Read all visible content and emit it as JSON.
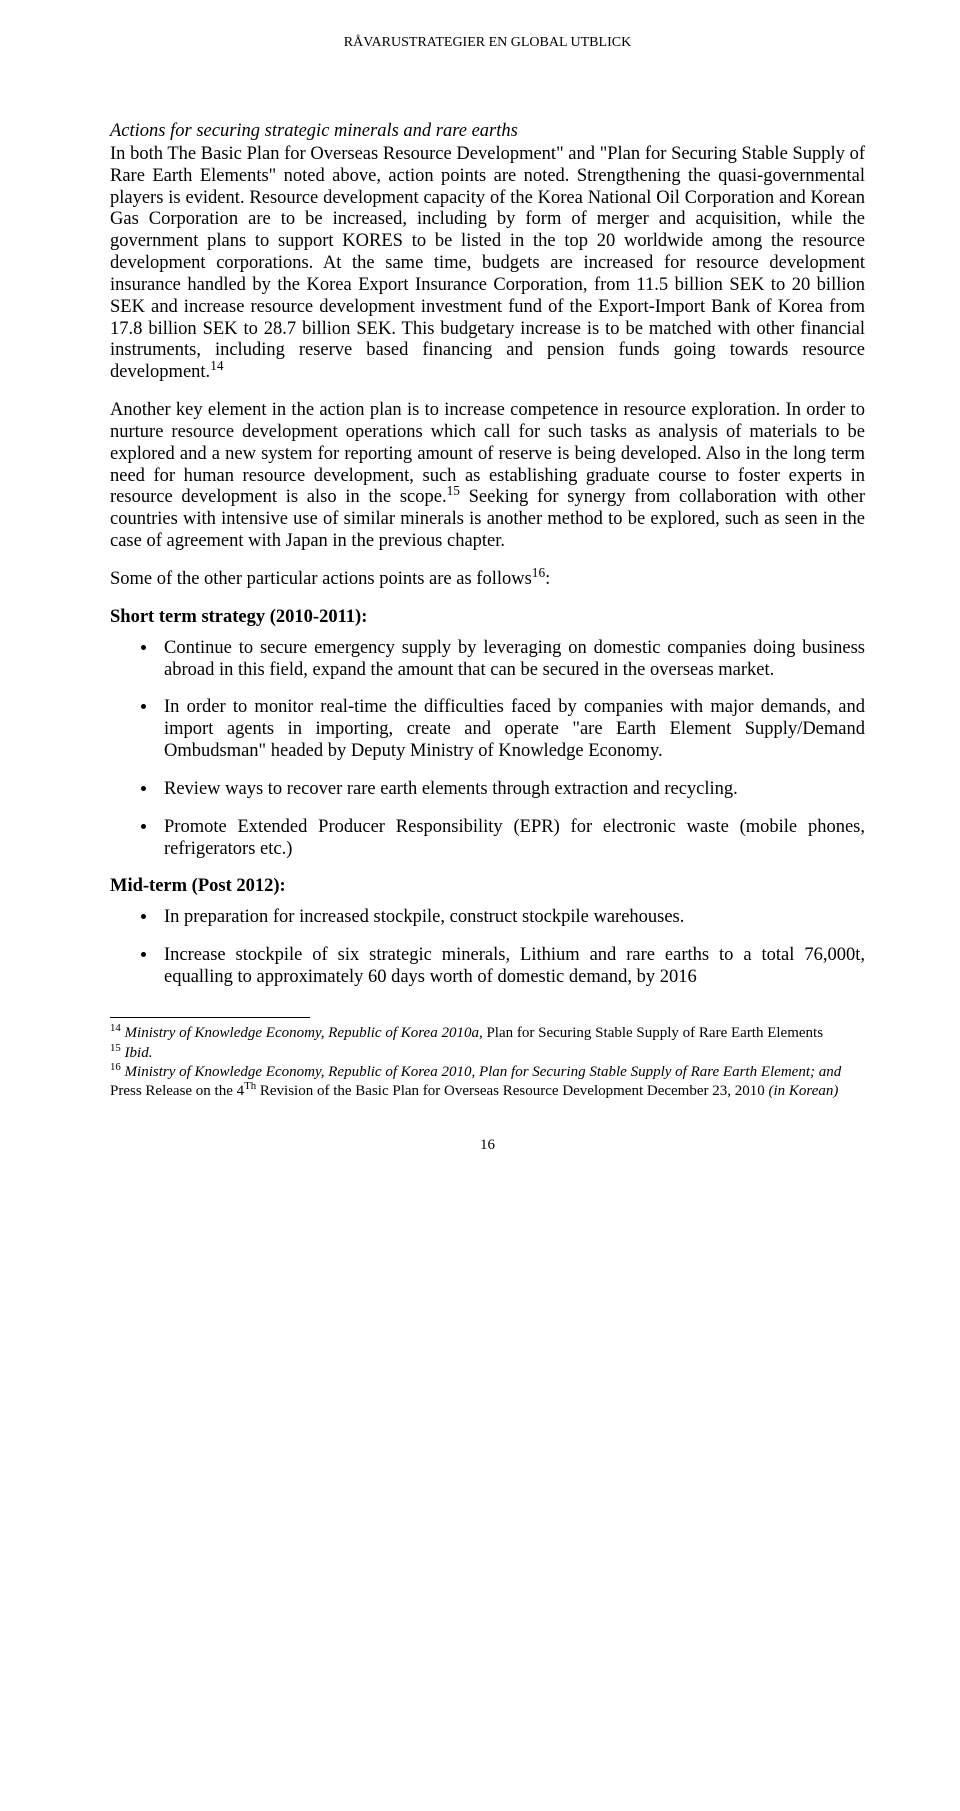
{
  "header": {
    "running_title": "RÅVARUSTRATEGIER EN GLOBAL UTBLICK"
  },
  "section": {
    "heading": "Actions for securing strategic minerals and rare earths",
    "para1_a": "In both The Basic Plan for Overseas Resource Development\" and \"Plan for Securing Stable Supply of Rare Earth Elements\" noted above, action points are noted. Strengthening the quasi-governmental players is evident. Resource development capacity of the Korea National Oil Corporation and Korean Gas Corporation are to be increased, including by form of merger and acquisition, while the government plans to support KORES to be listed in the top 20 worldwide among the resource development corporations. At the same time, budgets are increased for resource development insurance handled by the Korea Export Insurance Corporation, from 11.5 billion SEK to 20 billion SEK and increase resource development investment fund of the Export-Import Bank of Korea from 17.8 billion SEK to 28.7 billion SEK. This budgetary increase is to be matched with other financial instruments, including reserve based financing and pension funds going towards resource development.",
    "fn14": "14",
    "para2_a": "Another key element in the action plan is to increase competence in resource exploration. In order to nurture resource development operations which call for such tasks as analysis of materials to be explored and a new system for reporting amount of reserve is being developed. Also in the long term need for human resource development, such as establishing graduate course to foster experts in resource development is also in the scope.",
    "fn15": "15",
    "para2_b": " Seeking for synergy from collaboration with other countries with intensive use of similar minerals is another method to be explored, such as seen in the case of agreement with Japan in the previous chapter.",
    "para3_a": "Some of the other particular actions points are as follows",
    "fn16": "16",
    "para3_b": ":",
    "short_term_heading": "Short term strategy (2010-2011):",
    "short_bullets": [
      "Continue to secure emergency supply by leveraging on domestic companies doing business abroad in this field, expand the amount that can be secured in the overseas market.",
      "In order to monitor real-time the difficulties faced by companies with major demands, and import agents in importing, create and operate \"are Earth Element Supply/Demand Ombudsman\" headed by Deputy Ministry of Knowledge Economy.",
      "Review ways to recover rare earth elements through extraction and recycling.",
      "Promote Extended Producer Responsibility (EPR) for electronic waste (mobile phones, refrigerators etc.)"
    ],
    "mid_term_heading": "Mid-term (Post 2012):",
    "mid_bullets": [
      "In preparation for increased stockpile, construct stockpile warehouses.",
      "Increase stockpile of six strategic minerals, Lithium and rare earths to a total 76,000t, equalling to approximately 60 days worth of domestic demand, by 2016"
    ]
  },
  "footnotes": {
    "fn14_num": "14",
    "fn14_italic": " Ministry of Knowledge Economy, Republic of Korea 2010a, ",
    "fn14_rest": "Plan for Securing Stable Supply of Rare Earth Elements",
    "fn15_num": "15",
    "fn15_text": " Ibid.",
    "fn16_num": "16",
    "fn16_italic_a": " Ministry of Knowledge Economy, Republic of Korea 2010, Plan for Securing Stable Supply of Rare Earth Element;  and ",
    "fn16_rest_a": "Press Release on the 4",
    "fn16_th": "Th",
    "fn16_rest_b": " Revision of the Basic Plan for Overseas Resource Development December 23, 2010 ",
    "fn16_italic_b": "(in Korean)"
  },
  "page_number": "16"
}
